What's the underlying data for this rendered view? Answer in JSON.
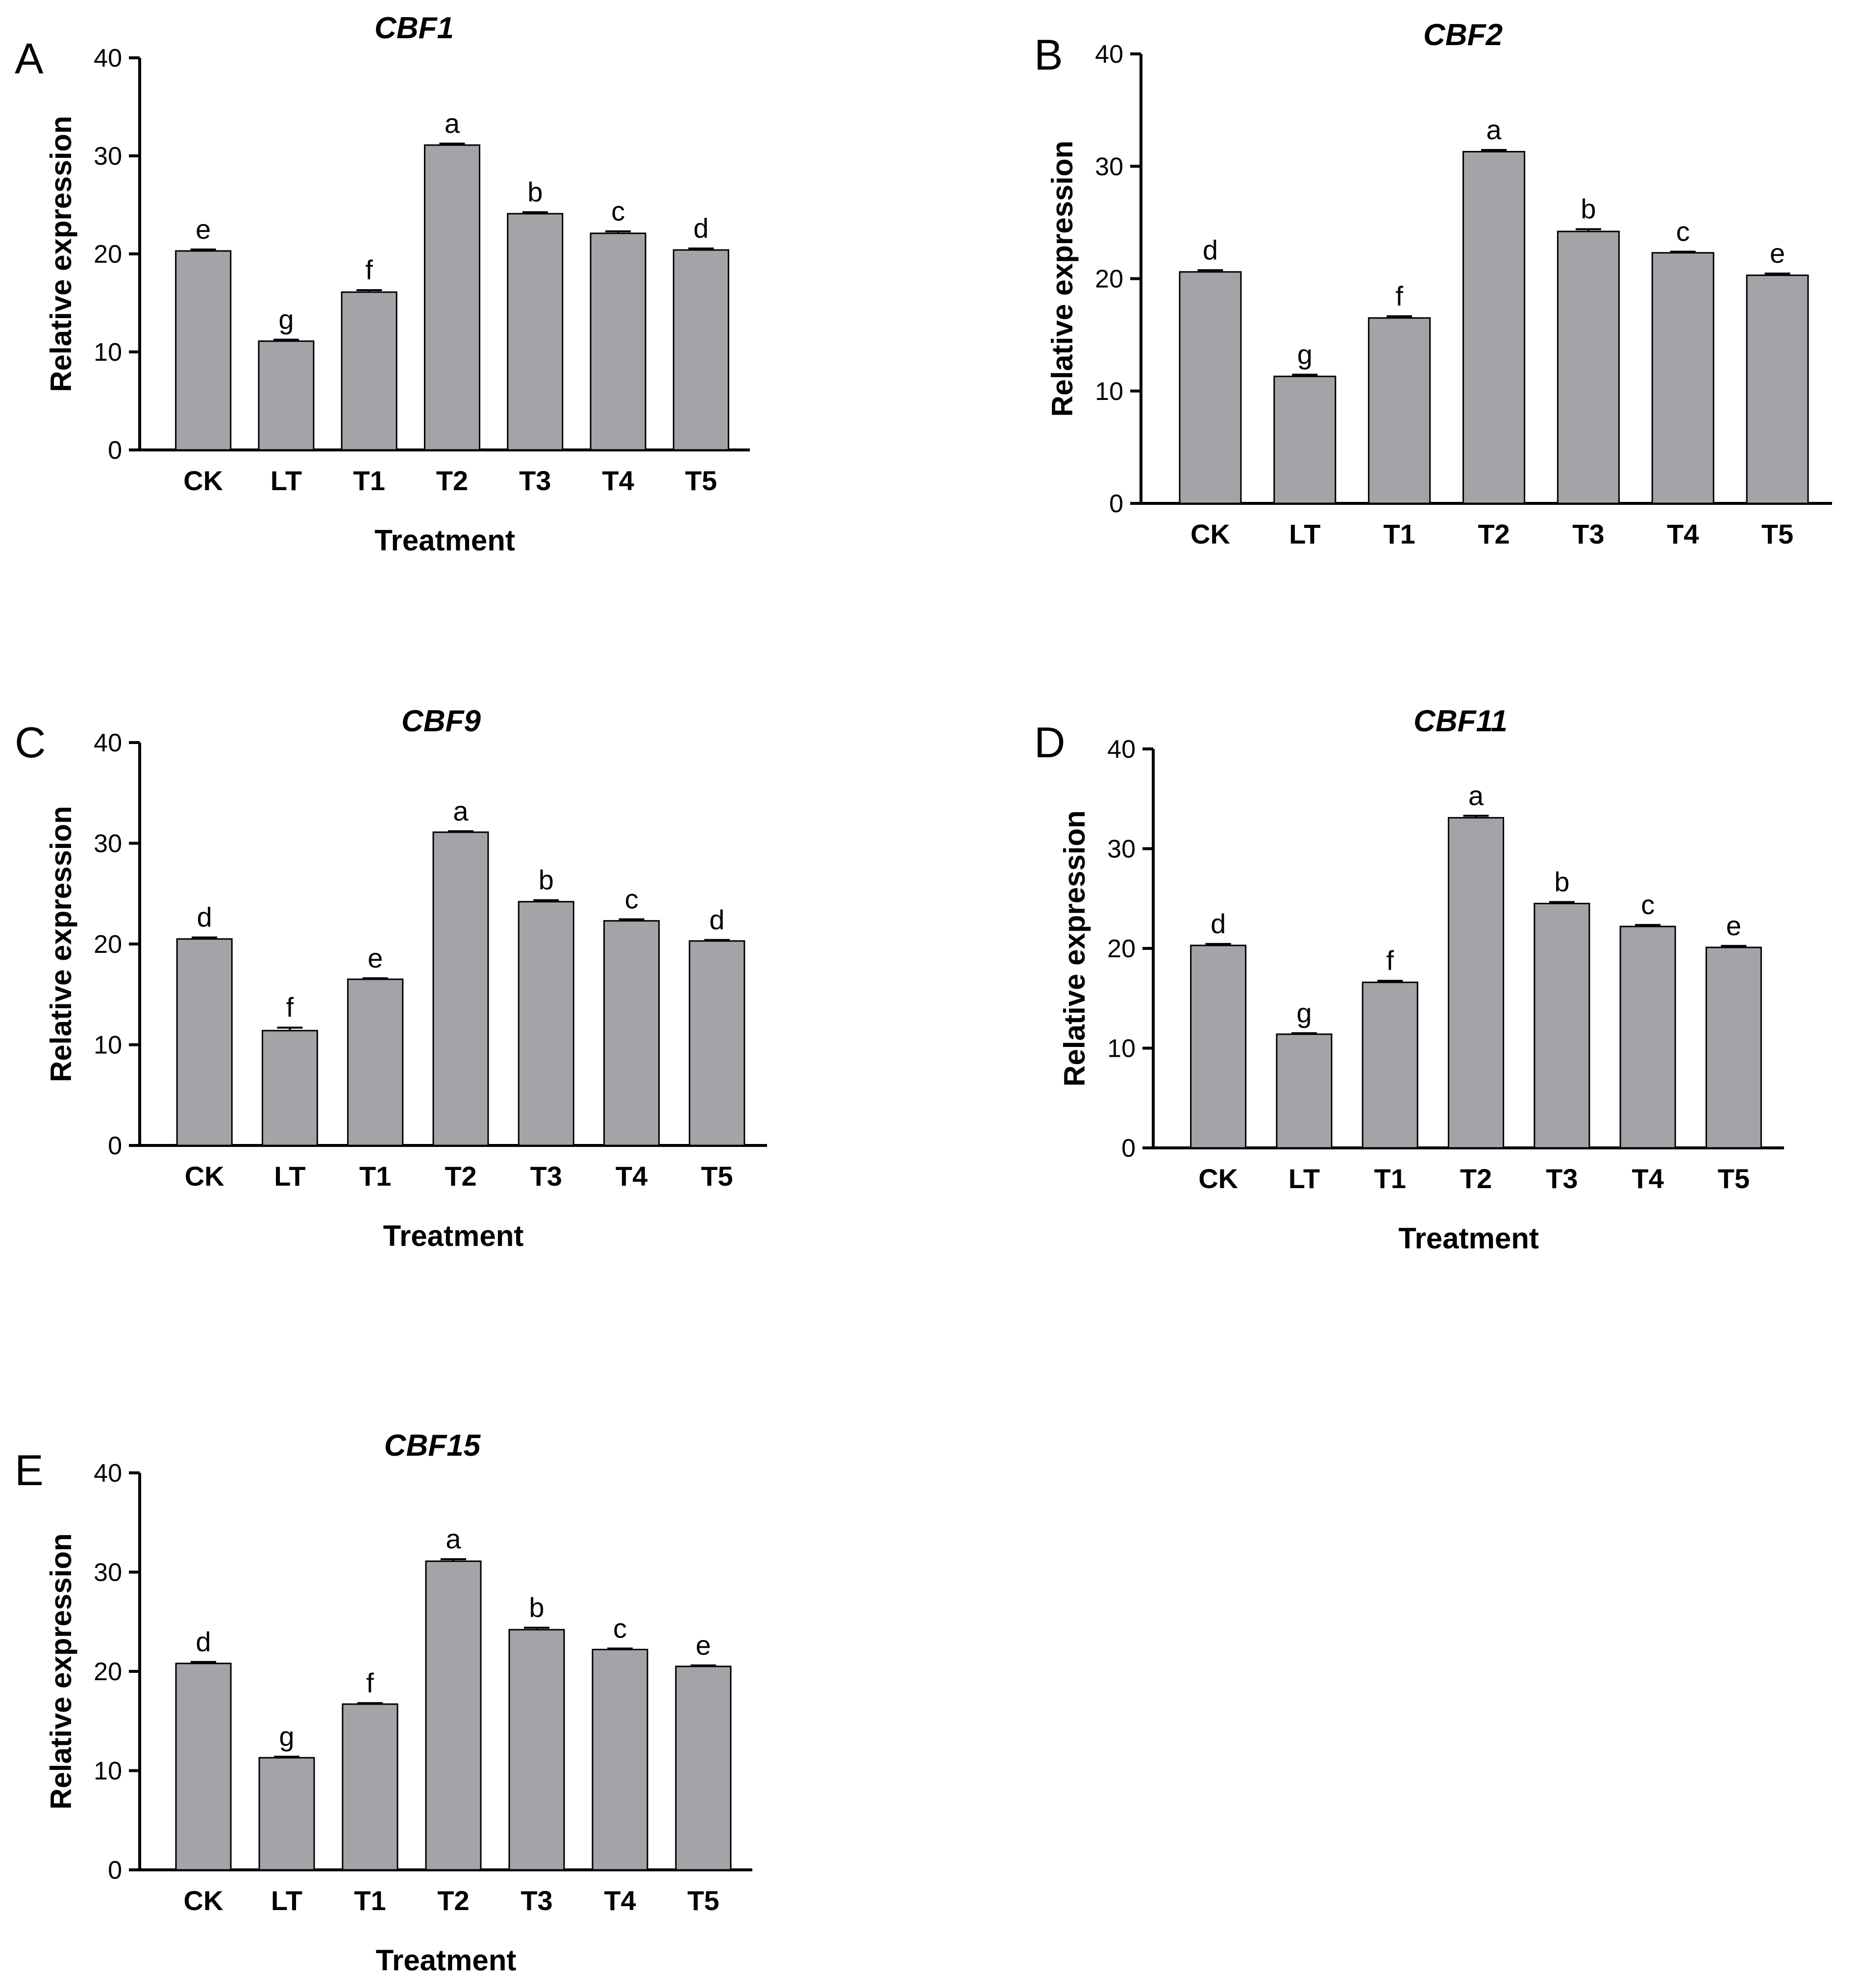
{
  "chart_data": [
    {
      "type": "bar",
      "panel": "A",
      "title": "CBF1",
      "xlabel": "Treatment",
      "ylabel": "Relative expression",
      "ylim": [
        0,
        40
      ],
      "yticks": [
        "0",
        "10",
        "20",
        "30",
        "40"
      ],
      "categories": [
        "CK",
        "LT",
        "T1",
        "T2",
        "T3",
        "T4",
        "T5"
      ],
      "values": [
        20.3,
        11.1,
        16.1,
        31.1,
        24.1,
        22.1,
        20.4
      ],
      "errors": [
        0.15,
        0.15,
        0.2,
        0.15,
        0.15,
        0.2,
        0.15
      ],
      "letters": [
        "e",
        "g",
        "f",
        "a",
        "b",
        "c",
        "d"
      ]
    },
    {
      "type": "bar",
      "panel": "B",
      "title": "CBF2",
      "xlabel": "",
      "ylabel": "Relative expression",
      "ylim": [
        0,
        40
      ],
      "yticks": [
        "0",
        "10",
        "20",
        "30",
        "40"
      ],
      "categories": [
        "CK",
        "LT",
        "T1",
        "T2",
        "T3",
        "T4",
        "T5"
      ],
      "values": [
        20.6,
        11.3,
        16.5,
        31.3,
        24.2,
        22.3,
        20.3
      ],
      "errors": [
        0.15,
        0.15,
        0.15,
        0.15,
        0.2,
        0.1,
        0.15
      ],
      "letters": [
        "d",
        "g",
        "f",
        "a",
        "b",
        "c",
        "e"
      ]
    },
    {
      "type": "bar",
      "panel": "C",
      "title": "CBF9",
      "xlabel": "Treatment",
      "ylabel": "Relative expression",
      "ylim": [
        0,
        40
      ],
      "yticks": [
        "0",
        "10",
        "20",
        "30",
        "40"
      ],
      "categories": [
        "CK",
        "LT",
        "T1",
        "T2",
        "T3",
        "T4",
        "T5"
      ],
      "values": [
        20.5,
        11.4,
        16.5,
        31.1,
        24.2,
        22.3,
        20.3
      ],
      "errors": [
        0.15,
        0.3,
        0.1,
        0.1,
        0.15,
        0.15,
        0.1
      ],
      "letters": [
        "d",
        "f",
        "e",
        "a",
        "b",
        "c",
        "d"
      ]
    },
    {
      "type": "bar",
      "panel": "D",
      "title": "CBF11",
      "xlabel": "Treatment",
      "ylabel": "Relative expression",
      "ylim": [
        0,
        40
      ],
      "yticks": [
        "0",
        "10",
        "20",
        "30",
        "40"
      ],
      "categories": [
        "CK",
        "LT",
        "T1",
        "T2",
        "T3",
        "T4",
        "T5"
      ],
      "values": [
        20.3,
        11.4,
        16.6,
        33.1,
        24.5,
        22.2,
        20.1
      ],
      "errors": [
        0.15,
        0.1,
        0.15,
        0.2,
        0.15,
        0.15,
        0.15
      ],
      "letters": [
        "d",
        "g",
        "f",
        "a",
        "b",
        "c",
        "e"
      ]
    },
    {
      "type": "bar",
      "panel": "E",
      "title": "CBF15",
      "xlabel": "Treatment",
      "ylabel": "Relative expression",
      "ylim": [
        0,
        40
      ],
      "yticks": [
        "0",
        "10",
        "20",
        "30",
        "40"
      ],
      "categories": [
        "CK",
        "LT",
        "T1",
        "T2",
        "T3",
        "T4",
        "T5"
      ],
      "values": [
        20.8,
        11.3,
        16.7,
        31.1,
        24.2,
        22.2,
        20.5
      ],
      "errors": [
        0.15,
        0.1,
        0.1,
        0.2,
        0.2,
        0.1,
        0.1
      ],
      "letters": [
        "d",
        "g",
        "f",
        "a",
        "b",
        "c",
        "e"
      ]
    }
  ]
}
